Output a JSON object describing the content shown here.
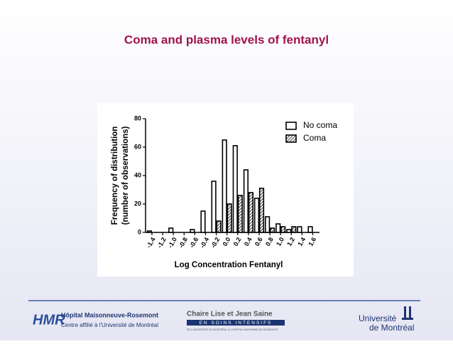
{
  "chart_data": {
    "type": "bar",
    "title": "Coma and plasma levels of fentanyl",
    "xlabel": "Log Concentration Fentanyl",
    "ylabel": [
      "Frequency of distribution",
      "(number of observations)"
    ],
    "categories": [
      "-1.4",
      "-1.2",
      "-1.0",
      "-0.8",
      "-0.6",
      "-0.4",
      "-0.2",
      "0.0",
      "0.2",
      "0.4",
      "0.6",
      "0.8",
      "1.0",
      "1.2",
      "1.4",
      "1.6"
    ],
    "series": [
      {
        "name": "No coma",
        "color": "#ffffff",
        "values": [
          1,
          0,
          3,
          0,
          2,
          15,
          36,
          65,
          61,
          44,
          24,
          11,
          6,
          2,
          4,
          4
        ]
      },
      {
        "name": "Coma",
        "color": "#000000",
        "hatch": true,
        "values": [
          0,
          0,
          0,
          0,
          0,
          0,
          8,
          20,
          26,
          28,
          31,
          3,
          4,
          4,
          0,
          0
        ]
      }
    ],
    "ylim": [
      0,
      80
    ],
    "yticks": [
      0,
      20,
      40,
      60,
      80
    ],
    "legend": "upper right"
  },
  "footer": {
    "hospital": {
      "mark": "HMR",
      "name": "Hôpital Maisonneuve-Rosemont",
      "sub": "Centre affilié à l'Université de Montréal"
    },
    "chair": {
      "name": "Chaire Lise et Jean Saine",
      "sub": "EN SOINS INTENSIFS",
      "note": "DE L'UNIVERSITÉ DE MONTRÉAL À L'HÔPITAL MAISONNEUVE-ROSEMONT"
    },
    "university": [
      "Université",
      "de Montréal"
    ]
  }
}
